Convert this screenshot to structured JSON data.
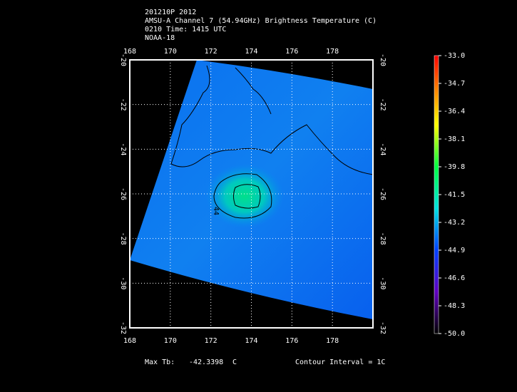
{
  "header": {
    "lines": [
      "201210P 2012",
      "AMSU-A Channel 7 (54.94GHz) Brightness Temperature (C)",
      "0210 Time: 1415 UTC",
      "NOAA-18"
    ]
  },
  "map": {
    "xlim": [
      168,
      180
    ],
    "ylim": [
      -32,
      -20
    ],
    "xticks": [
      168,
      170,
      172,
      174,
      176,
      178
    ],
    "yticks": [
      -20,
      -22,
      -24,
      -26,
      -28,
      -30,
      -32
    ],
    "grid": true,
    "contour_label": "44"
  },
  "colorbar": {
    "lim": [
      -50,
      -33
    ],
    "ticks": [
      {
        "value": -33,
        "label": "-33.0"
      },
      {
        "value": -34.7,
        "label": "-34.7"
      },
      {
        "value": -36.4,
        "label": "-36.4"
      },
      {
        "value": -38.1,
        "label": "-38.1"
      },
      {
        "value": -39.8,
        "label": "-39.8"
      },
      {
        "value": -41.5,
        "label": "-41.5"
      },
      {
        "value": -43.2,
        "label": "-43.2"
      },
      {
        "value": -44.9,
        "label": "-44.9"
      },
      {
        "value": -46.6,
        "label": "-46.6"
      },
      {
        "value": -48.3,
        "label": "-48.3"
      },
      {
        "value": -50,
        "label": "-50.0"
      }
    ]
  },
  "footer": {
    "max_label": "Max Tb:",
    "max_value": -42.3398,
    "max_unit": "C",
    "contour_interval": "Contour Interval = 1C"
  }
}
